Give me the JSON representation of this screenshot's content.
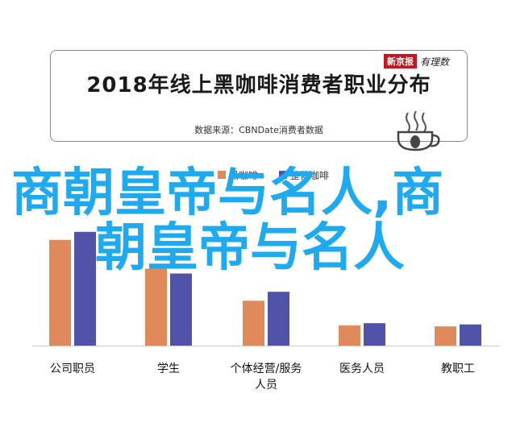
{
  "header": {
    "title": "2018年线上黑咖啡消费者职业分布",
    "source": "数据来源：CBNDate消费者数据",
    "brand_red": "新京报",
    "brand_script": "有理数"
  },
  "overlay": {
    "line1": "商朝皇帝与名人,商",
    "line2": "朝皇帝与名人"
  },
  "colors": {
    "series1": "#e0895a",
    "series2": "#5153a8",
    "overlay": "#1eaaf1"
  },
  "chart_data": {
    "type": "bar",
    "categories": [
      "公司职员",
      "学生",
      "个体经营/服务人员",
      "医务人员",
      "教职工"
    ],
    "category_lines": [
      [
        "公司职员"
      ],
      [
        "学生"
      ],
      [
        "个体经营/服务",
        "人员"
      ],
      [
        "医务人员"
      ],
      [
        "教职工"
      ]
    ],
    "series": [
      {
        "name": "黑咖啡",
        "values": [
          33,
          24,
          14,
          6.3,
          6.0
        ]
      },
      {
        "name": "整体咖啡",
        "values": [
          35.5,
          22.5,
          16.8,
          7.0,
          6.6
        ]
      }
    ],
    "ylim": [
      0,
      45
    ],
    "legend_position": "top-center"
  }
}
